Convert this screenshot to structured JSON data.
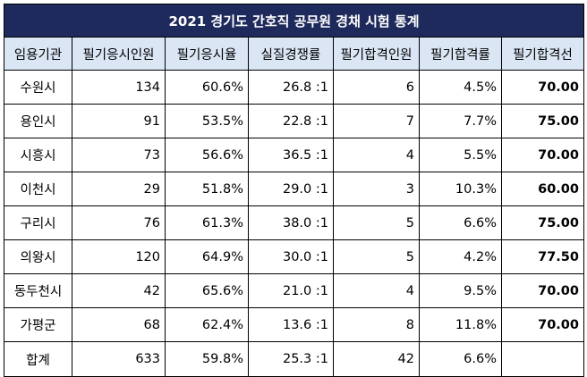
{
  "title": "2021 경기도 간호직 공무원 경채 시험 통계",
  "columns": [
    "임용기관",
    "필기응시인원",
    "필기응시율",
    "실질경쟁률",
    "필기합격인원",
    "필기합격률",
    "필기합격선"
  ],
  "rows": [
    {
      "agency": "수원시",
      "applicants": "134",
      "rate": "60.6%",
      "competition": "26.8 :1",
      "passed": "6",
      "pass_rate": "4.5%",
      "cutoff": "70.00"
    },
    {
      "agency": "용인시",
      "applicants": "91",
      "rate": "53.5%",
      "competition": "22.8 :1",
      "passed": "7",
      "pass_rate": "7.7%",
      "cutoff": "75.00"
    },
    {
      "agency": "시흥시",
      "applicants": "73",
      "rate": "56.6%",
      "competition": "36.5 :1",
      "passed": "4",
      "pass_rate": "5.5%",
      "cutoff": "70.00"
    },
    {
      "agency": "이천시",
      "applicants": "29",
      "rate": "51.8%",
      "competition": "29.0 :1",
      "passed": "3",
      "pass_rate": "10.3%",
      "cutoff": "60.00"
    },
    {
      "agency": "구리시",
      "applicants": "76",
      "rate": "61.3%",
      "competition": "38.0 :1",
      "passed": "5",
      "pass_rate": "6.6%",
      "cutoff": "75.00"
    },
    {
      "agency": "의왕시",
      "applicants": "120",
      "rate": "64.9%",
      "competition": "30.0 :1",
      "passed": "5",
      "pass_rate": "4.2%",
      "cutoff": "77.50"
    },
    {
      "agency": "동두천시",
      "applicants": "42",
      "rate": "65.6%",
      "competition": "21.0 :1",
      "passed": "4",
      "pass_rate": "9.5%",
      "cutoff": "70.00"
    },
    {
      "agency": "가평군",
      "applicants": "68",
      "rate": "62.4%",
      "competition": "13.6 :1",
      "passed": "8",
      "pass_rate": "11.8%",
      "cutoff": "70.00"
    }
  ],
  "total": {
    "agency": "합계",
    "applicants": "633",
    "rate": "59.8%",
    "competition": "25.3 :1",
    "passed": "42",
    "pass_rate": "6.6%",
    "cutoff": ""
  },
  "colors": {
    "title_bg": "#1f2a5c",
    "header_bg": "#dbe6f5"
  }
}
